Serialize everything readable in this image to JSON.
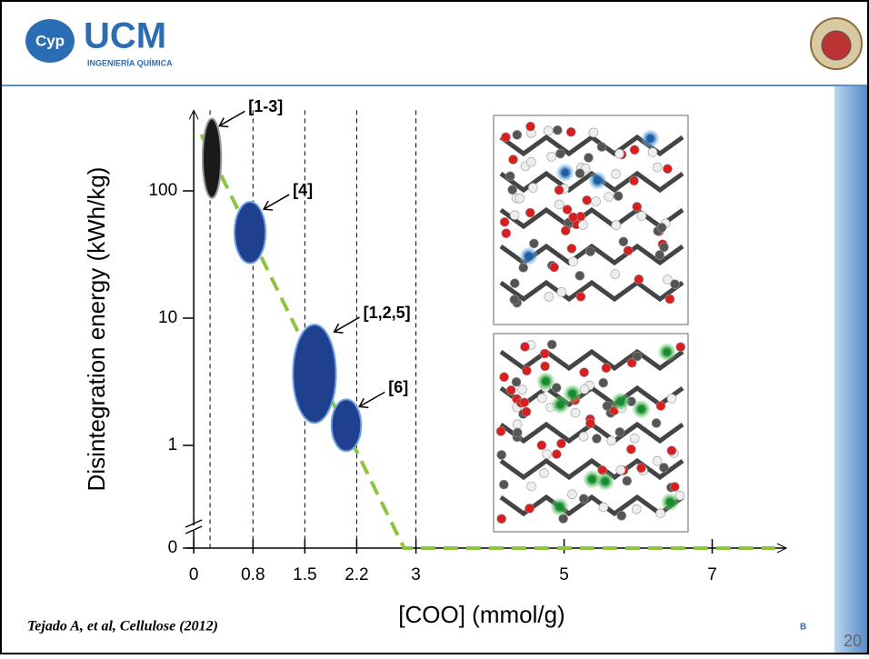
{
  "header": {
    "logo_mark": "Cyp",
    "logo_title": "UCM",
    "logo_subtitle": "INGENIERÍA QUÍMICA"
  },
  "chart_data": {
    "type": "scatter",
    "x_label": "[COO] (mmol/g)",
    "y_label": "Disintegration energy (kWh/kg)",
    "xlim": [
      -0.1,
      8
    ],
    "ylim": [
      0,
      430
    ],
    "xticks": [
      0,
      0.8,
      1.5,
      2.2,
      3,
      5,
      7
    ],
    "yticks": [
      0,
      1,
      10,
      100
    ],
    "y_scale": "log",
    "y_axis_break": true,
    "reference_lines_x": [
      0.22,
      0.8,
      1.5,
      2.2,
      3
    ],
    "clusters": [
      {
        "label": "[1-3]",
        "color": "#1a1a1a",
        "x": [
          0.12,
          0.37
        ],
        "y": [
          88,
          370
        ]
      },
      {
        "label": "[4]",
        "color": "#1f3f8f",
        "x": [
          0.55,
          0.97
        ],
        "y": [
          27,
          82
        ]
      },
      {
        "label": "[1,2,5]",
        "color": "#1f3f8f",
        "x": [
          1.34,
          1.92
        ],
        "y": [
          1.5,
          8.9
        ]
      },
      {
        "label": "[6]",
        "color": "#1f3f8f",
        "x": [
          1.86,
          2.26
        ],
        "y": [
          0.9,
          2.3
        ]
      }
    ],
    "trend_line": {
      "color": "#8cc63f",
      "x": [
        0.1,
        2.84,
        7.85
      ],
      "y": [
        277,
        0,
        0
      ]
    }
  },
  "footer": {
    "citation": "Tejado A, et al, Cellulose (2012)",
    "marker": "B",
    "page_number": "20"
  }
}
